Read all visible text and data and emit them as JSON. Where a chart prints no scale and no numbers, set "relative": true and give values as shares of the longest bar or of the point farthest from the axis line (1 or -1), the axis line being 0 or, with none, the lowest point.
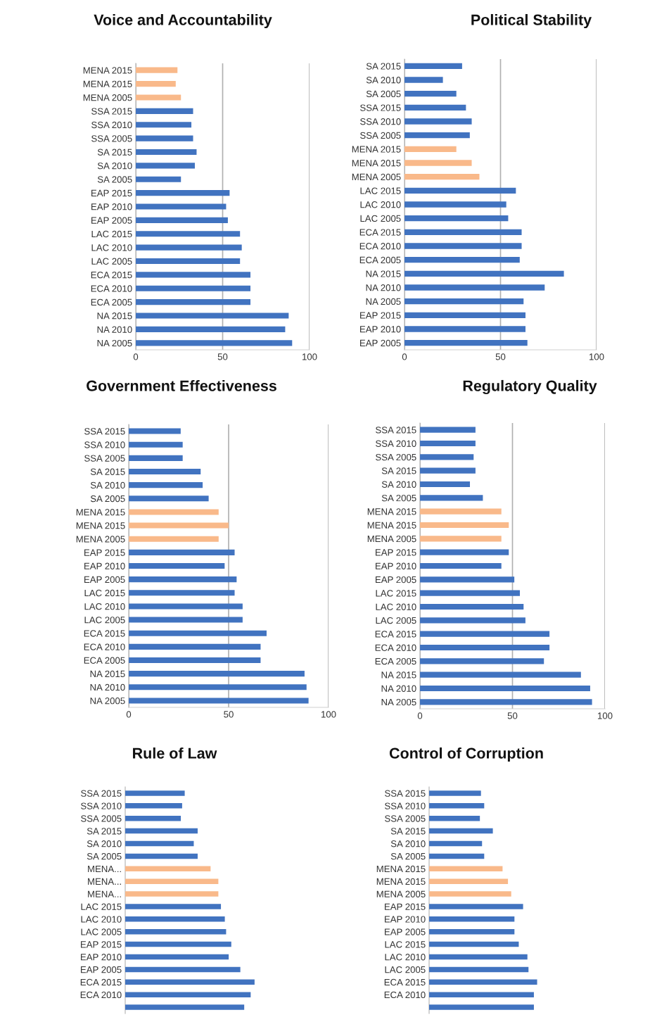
{
  "chart_data": [
    {
      "type": "bar",
      "orientation": "horizontal",
      "title": "Voice and Accountability",
      "categories": [
        "MENA 2015",
        "MENA 2015",
        "MENA 2005",
        "SSA 2015",
        "SSA 2010",
        "SSA 2005",
        "SA 2015",
        "SA 2010",
        "SA 2005",
        "EAP 2015",
        "EAP 2010",
        "EAP 2005",
        "LAC 2015",
        "LAC 2010",
        "LAC 2005",
        "ECA 2015",
        "ECA 2010",
        "ECA 2005",
        "NA 2015",
        "NA 2010",
        "NA 2005"
      ],
      "values": [
        24,
        23,
        26,
        33,
        32,
        33,
        35,
        34,
        26,
        54,
        52,
        53,
        60,
        61,
        60,
        66,
        66,
        66,
        88,
        86,
        90
      ],
      "colors": [
        "#f9b98a",
        "#f9b98a",
        "#f9b98a",
        "#4173c0",
        "#4173c0",
        "#4173c0",
        "#4173c0",
        "#4173c0",
        "#4173c0",
        "#4173c0",
        "#4173c0",
        "#4173c0",
        "#4173c0",
        "#4173c0",
        "#4173c0",
        "#4173c0",
        "#4173c0",
        "#4173c0",
        "#4173c0",
        "#4173c0",
        "#4173c0"
      ],
      "xlim": [
        0,
        100
      ],
      "xticks": [
        0,
        50,
        100
      ],
      "grid": "x"
    },
    {
      "type": "bar",
      "orientation": "horizontal",
      "title": "Political Stability",
      "categories": [
        "SA 2015",
        "SA 2010",
        "SA 2005",
        "SSA 2015",
        "SSA 2010",
        "SSA 2005",
        "MENA 2015",
        "MENA 2015",
        "MENA 2005",
        "LAC 2015",
        "LAC 2010",
        "LAC 2005",
        "ECA 2015",
        "ECA 2010",
        "ECA 2005",
        "NA 2015",
        "NA 2010",
        "NA 2005",
        "EAP 2015",
        "EAP 2010",
        "EAP 2005"
      ],
      "values": [
        30,
        20,
        27,
        32,
        35,
        34,
        27,
        35,
        39,
        58,
        53,
        54,
        61,
        61,
        60,
        83,
        73,
        62,
        63,
        63,
        64
      ],
      "colors": [
        "#4173c0",
        "#4173c0",
        "#4173c0",
        "#4173c0",
        "#4173c0",
        "#4173c0",
        "#f9b98a",
        "#f9b98a",
        "#f9b98a",
        "#4173c0",
        "#4173c0",
        "#4173c0",
        "#4173c0",
        "#4173c0",
        "#4173c0",
        "#4173c0",
        "#4173c0",
        "#4173c0",
        "#4173c0",
        "#4173c0",
        "#4173c0"
      ],
      "xlim": [
        0,
        100
      ],
      "xticks": [
        0,
        50,
        100
      ],
      "grid": "x"
    },
    {
      "type": "bar",
      "orientation": "horizontal",
      "title": "Government Effectiveness",
      "categories": [
        "SSA 2015",
        "SSA 2010",
        "SSA 2005",
        "SA 2015",
        "SA 2010",
        "SA 2005",
        "MENA 2015",
        "MENA 2015",
        "MENA 2005",
        "EAP 2015",
        "EAP 2010",
        "EAP 2005",
        "LAC 2015",
        "LAC 2010",
        "LAC 2005",
        "ECA 2015",
        "ECA 2010",
        "ECA 2005",
        "NA 2015",
        "NA 2010",
        "NA 2005"
      ],
      "values": [
        26,
        27,
        27,
        36,
        37,
        40,
        45,
        50,
        45,
        53,
        48,
        54,
        53,
        57,
        57,
        69,
        66,
        66,
        88,
        89,
        90
      ],
      "colors": [
        "#4173c0",
        "#4173c0",
        "#4173c0",
        "#4173c0",
        "#4173c0",
        "#4173c0",
        "#f9b98a",
        "#f9b98a",
        "#f9b98a",
        "#4173c0",
        "#4173c0",
        "#4173c0",
        "#4173c0",
        "#4173c0",
        "#4173c0",
        "#4173c0",
        "#4173c0",
        "#4173c0",
        "#4173c0",
        "#4173c0",
        "#4173c0"
      ],
      "xlim": [
        0,
        100
      ],
      "xticks": [
        0,
        50,
        100
      ],
      "grid": "x"
    },
    {
      "type": "bar",
      "orientation": "horizontal",
      "title": "Regulatory Quality",
      "categories": [
        "SSA 2015",
        "SSA 2010",
        "SSA 2005",
        "SA 2015",
        "SA 2010",
        "SA 2005",
        "MENA 2015",
        "MENA 2015",
        "MENA 2005",
        "EAP 2015",
        "EAP 2010",
        "EAP 2005",
        "LAC 2015",
        "LAC 2010",
        "LAC 2005",
        "ECA 2015",
        "ECA 2010",
        "ECA 2005",
        "NA 2015",
        "NA 2010",
        "NA 2005"
      ],
      "values": [
        30,
        30,
        29,
        30,
        27,
        34,
        44,
        48,
        44,
        48,
        44,
        51,
        54,
        56,
        57,
        70,
        70,
        67,
        87,
        92,
        93
      ],
      "colors": [
        "#4173c0",
        "#4173c0",
        "#4173c0",
        "#4173c0",
        "#4173c0",
        "#4173c0",
        "#f9b98a",
        "#f9b98a",
        "#f9b98a",
        "#4173c0",
        "#4173c0",
        "#4173c0",
        "#4173c0",
        "#4173c0",
        "#4173c0",
        "#4173c0",
        "#4173c0",
        "#4173c0",
        "#4173c0",
        "#4173c0",
        "#4173c0"
      ],
      "xlim": [
        0,
        100
      ],
      "xticks": [
        0,
        50,
        100
      ],
      "grid": "x"
    },
    {
      "type": "bar",
      "orientation": "horizontal",
      "title": "Rule of Law",
      "relative": true,
      "tick_labels": "y",
      "categories": [
        "SSA 2015",
        "SSA 2010",
        "SSA 2005",
        "SA 2015",
        "SA 2010",
        "SA 2005",
        "MENA...",
        "MENA...",
        "MENA...",
        "LAC 2015",
        "LAC 2010",
        "LAC 2005",
        "EAP 2015",
        "EAP 2010",
        "EAP 2005",
        "ECA 2015",
        "ECA 2010",
        null
      ],
      "values": [
        0.46,
        0.44,
        0.43,
        0.56,
        0.53,
        0.56,
        0.66,
        0.72,
        0.72,
        0.74,
        0.77,
        0.78,
        0.82,
        0.8,
        0.89,
        1,
        0.97,
        0.92
      ],
      "colors": [
        "#4173c0",
        "#4173c0",
        "#4173c0",
        "#4173c0",
        "#4173c0",
        "#4173c0",
        "#f9b98a",
        "#f9b98a",
        "#f9b98a",
        "#4173c0",
        "#4173c0",
        "#4173c0",
        "#4173c0",
        "#4173c0",
        "#4173c0",
        "#4173c0",
        "#4173c0",
        "#4173c0"
      ]
    },
    {
      "type": "bar",
      "orientation": "horizontal",
      "title": "Control of Corruption",
      "relative": true,
      "tick_labels": "y",
      "categories": [
        "SSA 2015",
        "SSA 2010",
        "SSA 2005",
        "SA 2015",
        "SA 2010",
        "SA 2005",
        "MENA 2015",
        "MENA 2015",
        "MENA 2005",
        "EAP 2015",
        "EAP 2010",
        "EAP 2005",
        "LAC 2015",
        "LAC 2010",
        "LAC 2005",
        "ECA 2015",
        "ECA 2010",
        null
      ],
      "values": [
        0.48,
        0.51,
        0.47,
        0.59,
        0.49,
        0.51,
        0.68,
        0.73,
        0.76,
        0.87,
        0.79,
        0.79,
        0.83,
        0.91,
        0.92,
        1,
        0.97,
        0.97
      ],
      "colors": [
        "#4173c0",
        "#4173c0",
        "#4173c0",
        "#4173c0",
        "#4173c0",
        "#4173c0",
        "#f9b98a",
        "#f9b98a",
        "#f9b98a",
        "#4173c0",
        "#4173c0",
        "#4173c0",
        "#4173c0",
        "#4173c0",
        "#4173c0",
        "#4173c0",
        "#4173c0",
        "#4173c0"
      ]
    }
  ]
}
